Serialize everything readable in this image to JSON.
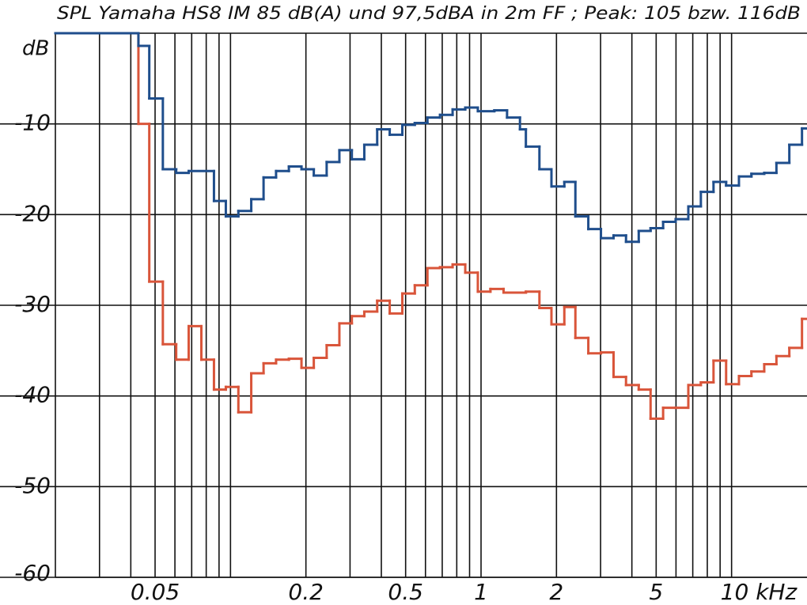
{
  "chart_data": {
    "type": "step",
    "title": "SPL Yamaha HS8 IM 85 dB(A) und 97,5dBA in 2m FF ; Peak: 105 bzw. 116dB",
    "y_label": "dB",
    "x_scale": "log",
    "xlim": [
      0.02,
      20
    ],
    "ylim": [
      -60,
      0
    ],
    "xticks": [
      0.05,
      0.2,
      0.5,
      1,
      2,
      5,
      {
        "value": 10,
        "label": "10 kHz"
      }
    ],
    "xgrid": [
      0.03,
      0.04,
      0.05,
      0.06,
      0.07,
      0.08,
      0.09,
      0.1,
      0.2,
      0.3,
      0.4,
      0.5,
      0.6,
      0.7,
      0.8,
      0.9,
      1,
      2,
      3,
      4,
      5,
      6,
      7,
      8,
      9,
      10
    ],
    "yticks": [
      -60,
      -50,
      -40,
      -30,
      -20,
      -10
    ],
    "grid": true,
    "series": [
      {
        "color": "#1f4e8c",
        "x": [
          0.02,
          0.0429,
          0.0474,
          0.0537,
          0.0607,
          0.0681,
          0.0859,
          0.0958,
          0.1075,
          0.121,
          0.1355,
          0.152,
          0.171,
          0.192,
          0.215,
          0.242,
          0.272,
          0.305,
          0.342,
          0.385,
          0.432,
          0.485,
          0.544,
          0.611,
          0.686,
          0.77,
          0.865,
          0.971,
          1.13,
          1.27,
          1.43,
          1.51,
          1.71,
          1.91,
          2.15,
          2.38,
          2.68,
          3.01,
          3.38,
          3.79,
          4.26,
          4.75,
          5.33,
          5.98,
          6.72,
          7.54,
          8.47,
          9.51,
          10.7,
          12.0,
          13.5,
          15.1,
          17.0,
          19.1
        ],
        "values": [
          0,
          -1.4,
          -7.2,
          -15.0,
          -15.4,
          -15.2,
          -18.5,
          -20.2,
          -19.6,
          -18.3,
          -15.9,
          -15.2,
          -14.7,
          -15.0,
          -15.7,
          -14.2,
          -12.9,
          -13.9,
          -12.3,
          -10.6,
          -11.2,
          -10.1,
          -9.9,
          -9.3,
          -9.0,
          -8.4,
          -8.2,
          -8.6,
          -8.5,
          -9.3,
          -10.6,
          -12.5,
          -15.0,
          -16.9,
          -16.4,
          -20.2,
          -21.6,
          -22.6,
          -22.3,
          -23.0,
          -21.8,
          -21.5,
          -20.8,
          -20.5,
          -19.1,
          -17.5,
          -16.4,
          -16.8,
          -15.8,
          -15.5,
          -15.4,
          -14.3,
          -12.3,
          -10.5
        ]
      },
      {
        "color": "#d9553a",
        "x": [
          0.02,
          0.0429,
          0.0474,
          0.0537,
          0.0607,
          0.0681,
          0.0765,
          0.0859,
          0.0958,
          0.1075,
          0.121,
          0.1355,
          0.152,
          0.171,
          0.192,
          0.215,
          0.242,
          0.272,
          0.305,
          0.342,
          0.385,
          0.432,
          0.485,
          0.544,
          0.611,
          0.686,
          0.77,
          0.865,
          0.971,
          1.09,
          1.23,
          1.51,
          1.71,
          1.91,
          2.15,
          2.38,
          2.68,
          3.01,
          3.38,
          3.79,
          4.26,
          4.75,
          5.33,
          5.98,
          6.72,
          7.54,
          8.47,
          9.51,
          10.7,
          12.0,
          13.5,
          15.1,
          17.0,
          19.1
        ],
        "values": [
          0,
          -10.0,
          -27.4,
          -34.3,
          -36.0,
          -32.3,
          -36.0,
          -39.3,
          -39.0,
          -41.8,
          -37.5,
          -36.4,
          -36.0,
          -35.9,
          -36.9,
          -35.8,
          -34.4,
          -32.0,
          -31.2,
          -30.7,
          -29.5,
          -30.9,
          -28.7,
          -27.8,
          -25.9,
          -25.8,
          -25.5,
          -26.4,
          -28.5,
          -28.2,
          -28.6,
          -28.5,
          -30.3,
          -32.1,
          -30.2,
          -33.6,
          -35.3,
          -35.2,
          -37.9,
          -38.8,
          -39.3,
          -42.5,
          -41.3,
          -41.3,
          -38.8,
          -38.5,
          -36.1,
          -38.7,
          -37.8,
          -37.3,
          -36.5,
          -35.6,
          -34.7,
          -31.5
        ]
      }
    ]
  }
}
